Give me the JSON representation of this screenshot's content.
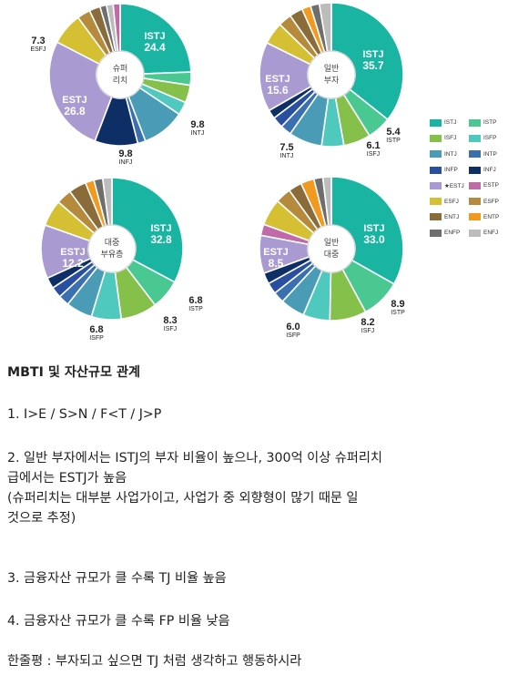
{
  "colors": {
    "ISTJ": "#1ab5a2",
    "ISTP": "#49c892",
    "ISFJ": "#84c04a",
    "ISFP": "#4fc9bd",
    "INTJ": "#4a9cb6",
    "INTP": "#3a6fb0",
    "INFP": "#2a4fa0",
    "INFJ": "#0e2f66",
    "ESTJ": "#a99ad1",
    "ESTP": "#c06aa9",
    "ESFJ": "#d5c034",
    "ESFP": "#b58a3c",
    "ENTJ": "#8a6b3a",
    "ENTP": "#f29a1f",
    "ENFP": "#6e6e6e",
    "ENFJ": "#bcbcbc"
  },
  "legend": [
    [
      "ISTJ",
      "ISTP"
    ],
    [
      "ISFJ",
      "ISFP"
    ],
    [
      "INTJ",
      "INTP"
    ],
    [
      "INFP",
      "INFJ"
    ],
    [
      "ESTJ",
      "ESTP"
    ],
    [
      "ESFJ",
      "ESFP"
    ],
    [
      "ENTJ",
      "ENTP"
    ],
    [
      "ENFP",
      "ENFJ"
    ]
  ],
  "legend_labels": {
    "ISTJ": "ISTJ",
    "ISTP": "ISTP",
    "ISFJ": "ISFJ",
    "ISFP": "ISFP",
    "INTJ": "INTJ",
    "INTP": "INTP",
    "INFP": "INFP",
    "INFJ": "INFJ",
    "ESTJ": "★ESTJ",
    "ESTP": "ESTP",
    "ESFJ": "ESFJ",
    "ESFP": "ESFP",
    "ENTJ": "ENTJ",
    "ENTP": "ENTP",
    "ENFP": "ENFP",
    "ENFJ": "ENFJ"
  },
  "chart_data": [
    {
      "type": "pie",
      "center_label": [
        "슈퍼",
        "리치"
      ],
      "slices": [
        {
          "type": "ISTJ",
          "value": 24.4
        },
        {
          "type": "ISTP",
          "value": 3.0
        },
        {
          "type": "ISFJ",
          "value": 4.0
        },
        {
          "type": "ISFP",
          "value": 3.0
        },
        {
          "type": "INTJ",
          "value": 9.8
        },
        {
          "type": "INTP",
          "value": 1.8
        },
        {
          "type": "INFJ",
          "value": 9.8
        },
        {
          "type": "ESTJ",
          "value": 26.8
        },
        {
          "type": "ESFJ",
          "value": 7.3
        },
        {
          "type": "ESFP",
          "value": 3.0
        },
        {
          "type": "ENTJ",
          "value": 2.5
        },
        {
          "type": "ENFP",
          "value": 1.5
        },
        {
          "type": "ENFJ",
          "value": 1.5
        },
        {
          "type": "ESTP",
          "value": 1.6
        }
      ],
      "labels": [
        {
          "type": "ISTJ",
          "name": "ISTJ",
          "value": "24.4"
        },
        {
          "type": "ESTJ",
          "name": "ESTJ",
          "value": "26.8"
        },
        {
          "type": "ESFJ",
          "name": "ESFJ",
          "value": "7.3"
        },
        {
          "type": "INTJ",
          "name": "INTJ",
          "value": "9.8"
        },
        {
          "type": "INFJ",
          "name": "INFJ",
          "value": "9.8"
        }
      ]
    },
    {
      "type": "pie",
      "center_label": [
        "일반",
        "부자"
      ],
      "slices": [
        {
          "type": "ISTJ",
          "value": 35.7
        },
        {
          "type": "ISTP",
          "value": 5.4
        },
        {
          "type": "ISFJ",
          "value": 6.1
        },
        {
          "type": "ISFP",
          "value": 5.0
        },
        {
          "type": "INTJ",
          "value": 7.5
        },
        {
          "type": "INTP",
          "value": 2.5
        },
        {
          "type": "INFP",
          "value": 2.5
        },
        {
          "type": "INFJ",
          "value": 2.0
        },
        {
          "type": "ESTJ",
          "value": 15.6
        },
        {
          "type": "ESFJ",
          "value": 5.0
        },
        {
          "type": "ESFP",
          "value": 3.0
        },
        {
          "type": "ENTJ",
          "value": 3.0
        },
        {
          "type": "ENTP",
          "value": 2.0
        },
        {
          "type": "ENFP",
          "value": 2.0
        },
        {
          "type": "ENFJ",
          "value": 2.7
        }
      ],
      "labels": [
        {
          "type": "ISTJ",
          "name": "ISTJ",
          "value": "35.7"
        },
        {
          "type": "ESTJ",
          "name": "ESTJ",
          "value": "15.6"
        },
        {
          "type": "ISTP",
          "name": "ISTP",
          "value": "5.4"
        },
        {
          "type": "ISFJ",
          "name": "ISFJ",
          "value": "6.1"
        },
        {
          "type": "INTJ",
          "name": "INTJ",
          "value": "7.5"
        }
      ]
    },
    {
      "type": "pie",
      "center_label": [
        "대중",
        "부유층"
      ],
      "slices": [
        {
          "type": "ISTJ",
          "value": 32.8
        },
        {
          "type": "ISTP",
          "value": 6.8
        },
        {
          "type": "ISFJ",
          "value": 8.3
        },
        {
          "type": "ISFP",
          "value": 6.8
        },
        {
          "type": "INTJ",
          "value": 6.0
        },
        {
          "type": "INTP",
          "value": 2.5
        },
        {
          "type": "INFP",
          "value": 2.5
        },
        {
          "type": "INFJ",
          "value": 2.5
        },
        {
          "type": "ESTJ",
          "value": 12.2
        },
        {
          "type": "ESFJ",
          "value": 6.0
        },
        {
          "type": "ESFP",
          "value": 3.5
        },
        {
          "type": "ENTJ",
          "value": 4.0
        },
        {
          "type": "ENTP",
          "value": 2.0
        },
        {
          "type": "ENFP",
          "value": 2.0
        },
        {
          "type": "ENFJ",
          "value": 2.1
        }
      ],
      "labels": [
        {
          "type": "ISTJ",
          "name": "ISTJ",
          "value": "32.8"
        },
        {
          "type": "ESTJ",
          "name": "ESTJ",
          "value": "12.2"
        },
        {
          "type": "ISTP",
          "name": "ISTP",
          "value": "6.8"
        },
        {
          "type": "ISFJ",
          "name": "ISFJ",
          "value": "8.3"
        },
        {
          "type": "ISFP",
          "name": "ISFP",
          "value": "6.8"
        }
      ]
    },
    {
      "type": "pie",
      "center_label": [
        "일반",
        "대중"
      ],
      "slices": [
        {
          "type": "ISTJ",
          "value": 33.0
        },
        {
          "type": "ISTP",
          "value": 8.9
        },
        {
          "type": "ISFJ",
          "value": 8.2
        },
        {
          "type": "ISFP",
          "value": 6.0
        },
        {
          "type": "INTJ",
          "value": 5.5
        },
        {
          "type": "INTP",
          "value": 2.5
        },
        {
          "type": "INFP",
          "value": 2.5
        },
        {
          "type": "INFJ",
          "value": 2.5
        },
        {
          "type": "ESTJ",
          "value": 8.5
        },
        {
          "type": "ESTP",
          "value": 2.5
        },
        {
          "type": "ESFJ",
          "value": 6.0
        },
        {
          "type": "ESFP",
          "value": 3.5
        },
        {
          "type": "ENTJ",
          "value": 3.0
        },
        {
          "type": "ENTP",
          "value": 3.0
        },
        {
          "type": "ENFP",
          "value": 2.0
        },
        {
          "type": "ENFJ",
          "value": 1.9
        }
      ],
      "labels": [
        {
          "type": "ISTJ",
          "name": "ISTJ",
          "value": "33.0"
        },
        {
          "type": "ESTJ",
          "name": "ESTJ",
          "value": "8.5"
        },
        {
          "type": "ISTP",
          "name": "ISTP",
          "value": "8.9"
        },
        {
          "type": "ISFJ",
          "name": "ISFJ",
          "value": "8.2"
        },
        {
          "type": "ISFP",
          "name": "ISFP",
          "value": "6.0"
        }
      ]
    }
  ],
  "text": {
    "title": "MBTI 및 자산규모 관계",
    "line1": "1. I>E / S>N / F<T / J>P",
    "line2a": "2. 일반 부자에서는 ISTJ의 부자 비율이 높으나, 300억 이상 슈퍼리치",
    "line2b": "급에서는 ESTJ가 높음",
    "line2c": "(슈퍼리치는 대부분 사업가이고, 사업가 중 외향형이 많기 때문 일",
    "line2d": "것으로 추정)",
    "line3": "3. 금융자산 규모가 클 수록 TJ 비율 높음",
    "line4": "4. 금융자산 규모가 클 수록 FP 비율 낮음",
    "line5": "한줄평 : 부자되고 싶으면 TJ 처럼 생각하고 행동하시라"
  }
}
